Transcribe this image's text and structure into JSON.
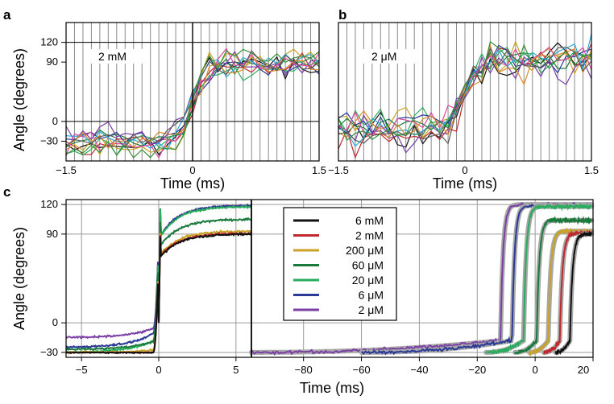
{
  "chart_data": [
    {
      "panel": "a",
      "type": "line",
      "annotation": "2 mM",
      "xlabel": "Time (ms)",
      "ylabel": "Angle  (degrees)",
      "xlim": [
        -1.5,
        1.5
      ],
      "ylim": [
        -60,
        150
      ],
      "xticks": [
        "−1.5",
        "0",
        "1.5"
      ],
      "yticks": [
        {
          "value": 120,
          "label": "120"
        },
        {
          "value": 90,
          "label": "90"
        },
        {
          "value": 0,
          "label": "0"
        },
        {
          "value": -30,
          "label": "−30"
        }
      ],
      "grid": "vertical",
      "transition_x": 0,
      "low_level": -30,
      "high_level": 90,
      "trace_count": 12,
      "trace_noise": 12
    },
    {
      "panel": "b",
      "type": "line",
      "annotation": "2 μM",
      "xlabel": "Time (ms)",
      "ylabel": "",
      "xlim": [
        -1.5,
        1.5
      ],
      "ylim": [
        -60,
        150
      ],
      "xticks": [
        "−1.5",
        "0",
        "1.5"
      ],
      "grid": "vertical",
      "transition_x": 0,
      "low_level": -10,
      "high_level": 95,
      "trace_count": 12,
      "trace_noise": 18
    },
    {
      "panel": "c-left",
      "type": "line",
      "xlabel": "",
      "ylabel": "Angle  (degrees)",
      "xlim": [
        -6,
        6
      ],
      "ylim": [
        -35,
        125
      ],
      "xticks": [
        "−5",
        "0",
        "5"
      ],
      "yticks": [
        {
          "value": 120,
          "label": "120"
        },
        {
          "value": 90,
          "label": "90"
        },
        {
          "value": 0,
          "label": "0"
        },
        {
          "value": -30,
          "label": "−30"
        }
      ],
      "grid": "both",
      "series": [
        {
          "name": "6 mM",
          "color": "#111111",
          "low": -30,
          "high": 90,
          "pre_rise": 0
        },
        {
          "name": "2 mM",
          "color": "#c0282b",
          "low": -30,
          "high": 91,
          "pre_rise": 0
        },
        {
          "name": "200 μM",
          "color": "#c9a227",
          "low": -30,
          "high": 93,
          "pre_rise": 3
        },
        {
          "name": "60 μM",
          "color": "#197a3b",
          "low": -27,
          "high": 105,
          "pre_rise": 10
        },
        {
          "name": "20 μM",
          "color": "#27ad5b",
          "low": -30,
          "high": 118,
          "pre_rise": 15
        },
        {
          "name": "6 μM",
          "color": "#2b3a96",
          "low": -25,
          "high": 119,
          "pre_rise": 18
        },
        {
          "name": "2 μM",
          "color": "#7b3fa6",
          "low": -15,
          "high": 119,
          "pre_rise": 12
        }
      ]
    },
    {
      "panel": "c-right",
      "type": "line",
      "xlabel": "Time (ms)",
      "xlim": [
        -98,
        20
      ],
      "ylim": [
        -35,
        125
      ],
      "xticks": [
        "−80",
        "−60",
        "−40",
        "−20",
        "0",
        "20"
      ],
      "grid": "both",
      "fit_color": "#a8a8a8",
      "series": [
        {
          "name": "6 mM",
          "color": "#111111",
          "low": -30,
          "high": 90,
          "t0": 12,
          "start": 7
        },
        {
          "name": "2 mM",
          "color": "#c0282b",
          "low": -30,
          "high": 91,
          "t0": 8.5,
          "start": 3
        },
        {
          "name": "200 μM",
          "color": "#c9a227",
          "low": -30,
          "high": 93,
          "t0": 4.5,
          "start": -2
        },
        {
          "name": "60 μM",
          "color": "#197a3b",
          "low": -30,
          "high": 104,
          "t0": 0.5,
          "start": -7
        },
        {
          "name": "20 μM",
          "color": "#27ad5b",
          "low": -30,
          "high": 118,
          "t0": -4,
          "start": -17
        },
        {
          "name": "6 μM",
          "color": "#2b3a96",
          "low": -30,
          "high": 119,
          "t0": -8,
          "start": -60
        },
        {
          "name": "2 μM",
          "color": "#7b3fa6",
          "low": -30,
          "high": 120,
          "t0": -12,
          "start": -98
        }
      ]
    }
  ],
  "panels": {
    "a": "a",
    "b": "b",
    "c": "c"
  },
  "legend": {
    "position": "center-left of right subplot",
    "items": [
      {
        "label": "6 mM",
        "color": "#111111"
      },
      {
        "label": "2 mM",
        "color": "#c0282b"
      },
      {
        "label": "200 μM",
        "color": "#c9a227"
      },
      {
        "label": "60 μM",
        "color": "#197a3b"
      },
      {
        "label": "20 μM",
        "color": "#27ad5b"
      },
      {
        "label": "6 μM",
        "color": "#2b3a96"
      },
      {
        "label": "2 μM",
        "color": "#7b3fa6"
      }
    ]
  },
  "trace_palette": [
    "#111111",
    "#c0282b",
    "#c9a227",
    "#197a3b",
    "#27ad5b",
    "#2b3a96",
    "#7b3fa6",
    "#2ba7d6",
    "#e0479e",
    "#d98a2b",
    "#3a8f3a",
    "#5a5a5a"
  ]
}
